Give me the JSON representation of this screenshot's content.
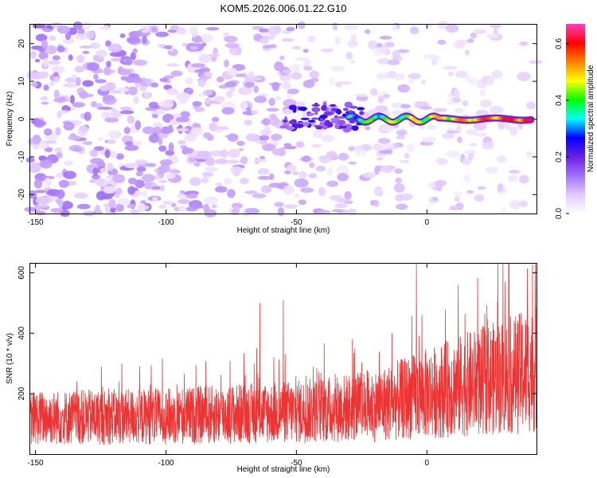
{
  "figure": {
    "title": "KOM5.2026.006.01.22.G10"
  },
  "chart_data": [
    {
      "id": "spectrogram",
      "type": "heatmap",
      "xlabel": "Height of straight line (km)",
      "ylabel": "Frequency (Hz)",
      "xlim": [
        -152,
        42
      ],
      "ylim": [
        -25,
        25
      ],
      "xticks": [
        -150,
        -100,
        -50,
        0
      ],
      "yticks": [
        -20,
        -10,
        0,
        10,
        20
      ],
      "colorbar": {
        "label": "Normalized spectral amplitude",
        "range": [
          0,
          0.67
        ],
        "ticks": [
          "0.0",
          "0.2",
          "0.4",
          "0.6"
        ],
        "tick_values": [
          0,
          0.2,
          0.4,
          0.6
        ],
        "stops": [
          "#ffffff",
          "#e2c8ff",
          "#a070ff",
          "#6a1fe0",
          "#0000ff",
          "#00ffff",
          "#00ff00",
          "#ffff00",
          "#ff8000",
          "#ff0000",
          "#ff40c0"
        ]
      },
      "signal_track": {
        "description": "carrier line near 0 Hz from about -30 km onward",
        "x_start": -30,
        "x_end": 40,
        "freq_hz": 0,
        "peak_amplitude": 0.62
      },
      "noise_amplitude": 0.12
    },
    {
      "id": "snr",
      "type": "line",
      "xlabel": "Height of straight line (km)",
      "ylabel": "SNR (10 * v/v)",
      "xlim": [
        -152,
        42
      ],
      "ylim": [
        0,
        630
      ],
      "xticks": [
        -150,
        -100,
        -50,
        0
      ],
      "yticks": [
        200,
        400,
        600
      ],
      "series": [
        {
          "name": "SNR",
          "color": "#ee3333",
          "trend_x": [
            -152,
            -100,
            -50,
            -20,
            0,
            20,
            42
          ],
          "trend_mean": [
            120,
            125,
            140,
            160,
            200,
            240,
            280
          ],
          "peaks": [
            {
              "x": -4,
              "y": 630
            },
            {
              "x": 30,
              "y": 570
            },
            {
              "x": 12,
              "y": 560
            },
            {
              "x": -55,
              "y": 510
            },
            {
              "x": -64,
              "y": 500
            }
          ]
        }
      ]
    }
  ]
}
